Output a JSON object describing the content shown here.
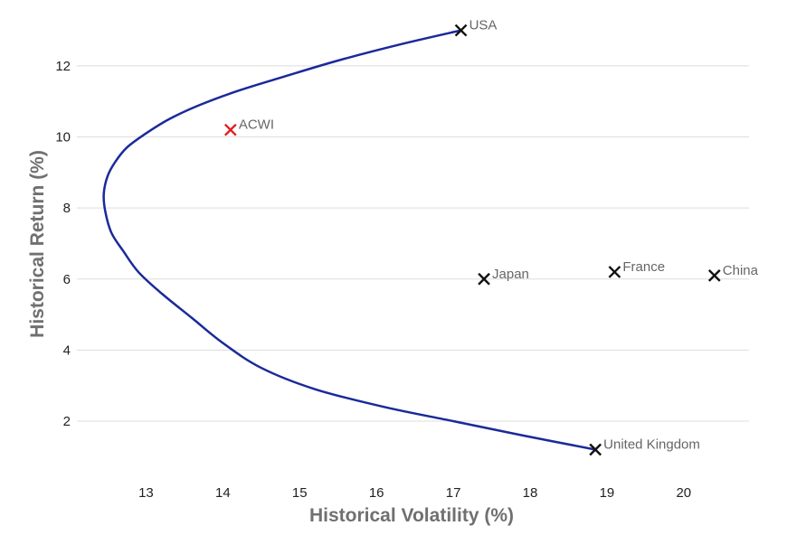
{
  "chart_data": {
    "type": "scatter",
    "title": "",
    "xlabel": "Historical Volatility (%)",
    "ylabel": "Historical Return (%)",
    "xlim": [
      12.1,
      20.85
    ],
    "ylim": [
      0.5,
      13.6
    ],
    "x_ticks": [
      13,
      14,
      15,
      16,
      17,
      18,
      19,
      20
    ],
    "y_ticks": [
      2,
      4,
      6,
      8,
      10,
      12
    ],
    "grid": "horizontal",
    "legend": "none",
    "points": [
      {
        "label": "USA",
        "x": 17.1,
        "y": 13.0,
        "color": "#111111"
      },
      {
        "label": "ACWI",
        "x": 14.1,
        "y": 10.2,
        "color": "#e02020"
      },
      {
        "label": "Japan",
        "x": 17.4,
        "y": 6.0,
        "color": "#111111"
      },
      {
        "label": "France",
        "x": 19.1,
        "y": 6.2,
        "color": "#111111"
      },
      {
        "label": "China",
        "x": 20.4,
        "y": 6.1,
        "color": "#111111"
      },
      {
        "label": "United Kingdom",
        "x": 18.85,
        "y": 1.2,
        "color": "#111111"
      }
    ],
    "frontier": {
      "color": "#1a2a9a",
      "x": [
        17.1,
        16.3,
        15.5,
        14.8,
        14.2,
        13.7,
        13.3,
        13.0,
        12.75,
        12.6,
        12.5,
        12.45,
        12.47,
        12.55,
        12.7,
        12.9,
        13.2,
        13.6,
        14.0,
        14.5,
        15.2,
        16.1,
        17.0,
        17.9,
        18.85
      ],
      "y": [
        13.0,
        12.6,
        12.15,
        11.7,
        11.3,
        10.9,
        10.5,
        10.1,
        9.7,
        9.3,
        8.9,
        8.4,
        7.9,
        7.3,
        6.8,
        6.2,
        5.6,
        4.9,
        4.2,
        3.5,
        2.9,
        2.4,
        2.0,
        1.6,
        1.2
      ]
    }
  }
}
